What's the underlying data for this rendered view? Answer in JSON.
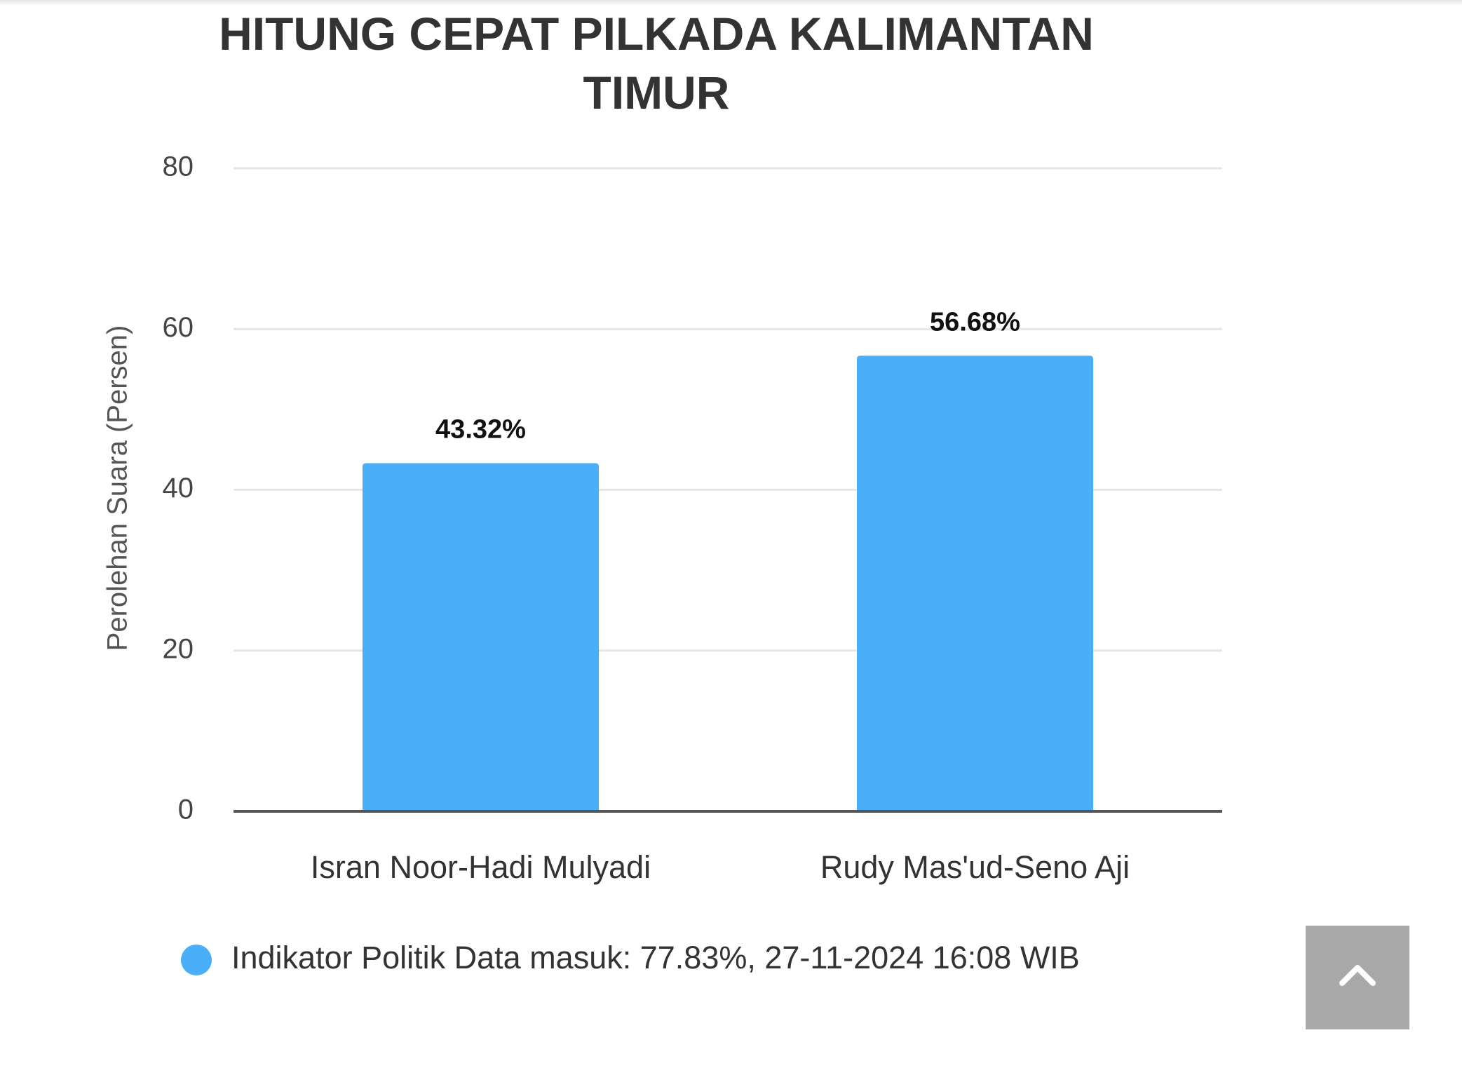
{
  "chart_data": {
    "type": "bar",
    "title": "HITUNG CEPAT PILKADA KALIMANTAN TIMUR",
    "y_label": "Perolehan Suara (Persen)",
    "categories": [
      "Isran Noor-Hadi Mulyadi",
      "Rudy Mas'ud-Seno Aji"
    ],
    "series": [
      {
        "name": "Indikator Politik Data masuk: 77.83%, 27-11-2024 16:08 WIB",
        "color": "#4aaff8",
        "values": [
          43.32,
          56.68
        ],
        "value_labels": [
          "43.32%",
          "56.68%"
        ]
      }
    ],
    "ylim": [
      0,
      80
    ],
    "yticks": [
      0,
      20,
      40,
      60,
      80
    ],
    "grid": true,
    "legend": "bottom"
  }
}
